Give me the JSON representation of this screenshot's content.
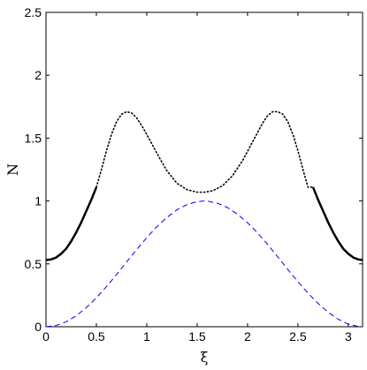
{
  "chart_data": {
    "type": "line",
    "title": "",
    "xlabel": "ξ",
    "ylabel": "N",
    "xlim": [
      0,
      3.14159
    ],
    "ylim": [
      0,
      2.5
    ],
    "xticks": [
      0,
      0.5,
      1,
      1.5,
      2,
      2.5,
      3
    ],
    "xtick_labels": [
      "0",
      "0.5",
      "1",
      "1.5",
      "2",
      "2.5",
      "3"
    ],
    "yticks": [
      0,
      0.5,
      1,
      1.5,
      2,
      2.5
    ],
    "ytick_labels": [
      "0",
      "0.5",
      "1",
      "1.5",
      "2",
      "2.5"
    ],
    "grid": false,
    "series": [
      {
        "style": "solid",
        "color": "#000000",
        "x": [
          0.0,
          0.05,
          0.1,
          0.15,
          0.2,
          0.25,
          0.3,
          0.35,
          0.4,
          0.45,
          0.5
        ],
        "y": [
          0.53,
          0.535,
          0.55,
          0.58,
          0.62,
          0.68,
          0.75,
          0.83,
          0.92,
          1.01,
          1.11
        ]
      },
      {
        "style": "dotted",
        "color": "#000000",
        "x": [
          0.5,
          0.55,
          0.6,
          0.65,
          0.7,
          0.75,
          0.8,
          0.85,
          0.9,
          0.95,
          1.0,
          1.1,
          1.2,
          1.3,
          1.4,
          1.5,
          1.571,
          1.65,
          1.75,
          1.85,
          1.95,
          2.05,
          2.15,
          2.2,
          2.25,
          2.3,
          2.35,
          2.4,
          2.45,
          2.5,
          2.55,
          2.6,
          2.65
        ],
        "y": [
          1.11,
          1.25,
          1.4,
          1.53,
          1.63,
          1.69,
          1.71,
          1.7,
          1.66,
          1.6,
          1.53,
          1.38,
          1.24,
          1.14,
          1.09,
          1.07,
          1.07,
          1.08,
          1.12,
          1.2,
          1.32,
          1.47,
          1.62,
          1.68,
          1.71,
          1.71,
          1.69,
          1.63,
          1.53,
          1.4,
          1.25,
          1.11,
          1.11
        ]
      },
      {
        "style": "solid",
        "color": "#000000",
        "x": [
          2.65,
          2.7,
          2.75,
          2.8,
          2.85,
          2.9,
          2.95,
          3.0,
          3.05,
          3.1,
          3.14159
        ],
        "y": [
          1.11,
          1.01,
          0.92,
          0.83,
          0.75,
          0.68,
          0.62,
          0.58,
          0.55,
          0.535,
          0.53
        ]
      },
      {
        "style": "dashed",
        "color": "#0000ff",
        "x": [
          0.0,
          0.1,
          0.2,
          0.3,
          0.4,
          0.5,
          0.6,
          0.7,
          0.8,
          0.9,
          1.0,
          1.1,
          1.2,
          1.3,
          1.4,
          1.5,
          1.571,
          1.6,
          1.7,
          1.8,
          1.9,
          2.0,
          2.1,
          2.2,
          2.3,
          2.4,
          2.5,
          2.6,
          2.7,
          2.8,
          2.9,
          3.0,
          3.1,
          3.14159
        ],
        "y": [
          0.0,
          0.01,
          0.039,
          0.087,
          0.152,
          0.23,
          0.319,
          0.415,
          0.515,
          0.614,
          0.708,
          0.796,
          0.869,
          0.93,
          0.971,
          0.995,
          1.0,
          0.999,
          0.983,
          0.948,
          0.895,
          0.827,
          0.746,
          0.654,
          0.555,
          0.455,
          0.358,
          0.267,
          0.185,
          0.115,
          0.06,
          0.02,
          0.002,
          0.0
        ]
      }
    ]
  }
}
